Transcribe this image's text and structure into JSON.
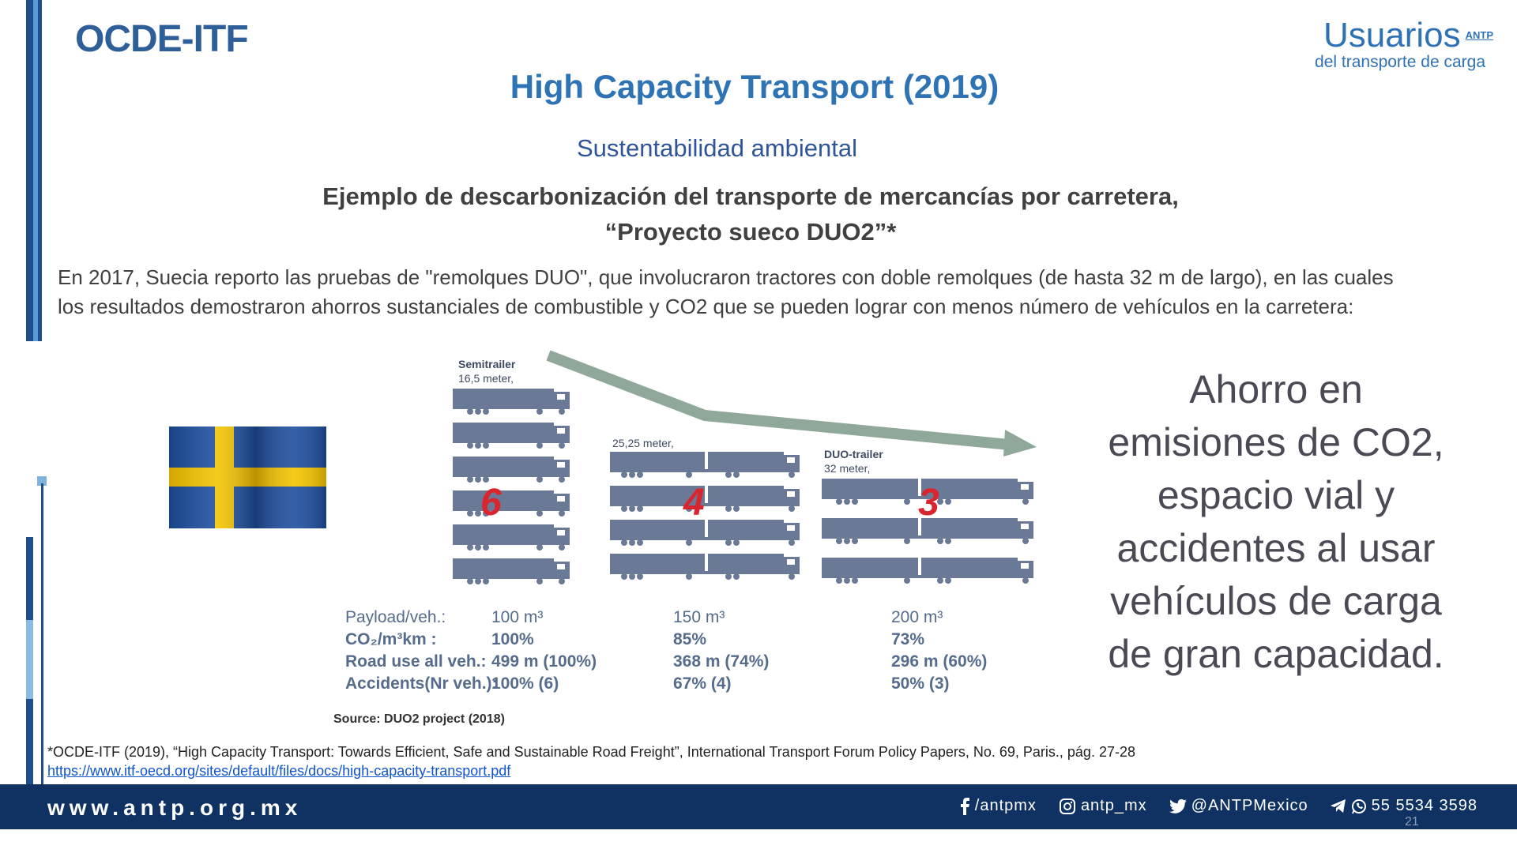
{
  "header": {
    "brand_left": "OCDE-ITF",
    "logo": {
      "main": "Usuarios",
      "badge": "ANTP",
      "sub": "del transporte de carga"
    }
  },
  "title": "High Capacity Transport (2019)",
  "subtitle": "Sustentabilidad ambiental",
  "heading_line1": "Ejemplo de descarbonización del transporte de mercancías por carretera,",
  "heading_line2": "“Proyecto sueco DUO2”*",
  "intro_line1": "En 2017, Suecia reporto las pruebas de \"remolques DUO\", que involucraron tractores con doble remolques (de hasta 32 m de largo), en las cuales",
  "intro_line2": "los resultados demostraron ahorros sustanciales de combustible y CO2 que se pueden lograr con menos número de vehículos en la carretera:",
  "figure": {
    "groups": [
      {
        "label1": "Semitrailer",
        "label2": "16,5 meter,",
        "count": "6"
      },
      {
        "label1": "",
        "label2": "25,25 meter,",
        "count": "4"
      },
      {
        "label1": "DUO-trailer",
        "label2": "32 meter,",
        "count": "3"
      }
    ],
    "stats": {
      "labels": [
        "Payload/veh.:",
        "CO₂/m³km :",
        "Road use all veh.:",
        "Accidents(Nr veh.):"
      ],
      "semitrailer": [
        "100 m³",
        "100%",
        "499 m (100%)",
        "100% (6)"
      ],
      "m25": [
        "150 m³",
        "85%",
        "368 m (74%)",
        "67% (4)"
      ],
      "duo": [
        "200 m³",
        "73%",
        "296 m (60%)",
        "50% (3)"
      ]
    },
    "source": "Source: DUO2 project (2018)"
  },
  "ahorro_lines": [
    "Ahorro en",
    "emisiones de CO2,",
    "espacio vial y",
    "accidentes al usar",
    "vehículos de carga",
    "de gran capacidad."
  ],
  "footnote": "*OCDE-ITF (2019), “High Capacity Transport: Towards Efficient, Safe and Sustainable Road Freight”, International Transport Forum Policy Papers, No. 69, Paris., pág. 27-28",
  "footnote_link": "https://www.itf-oecd.org/sites/default/files/docs/high-capacity-transport.pdf",
  "footer": {
    "website": "www.antp.org.mx",
    "facebook": "/antpmx",
    "instagram": "antp_mx",
    "twitter": "@ANTPMexico",
    "phone": "55 5534 3598"
  },
  "page_number": "21",
  "colors": {
    "brand_blue": "#2e74b5",
    "footer_bg": "#0f3263",
    "truck": "#6a7a96",
    "arrow": "#8fa89a",
    "count_red": "#d9252e"
  },
  "icons": [
    "sweden-flag",
    "facebook-icon",
    "instagram-icon",
    "twitter-icon",
    "telegram-icon",
    "whatsapp-icon"
  ]
}
